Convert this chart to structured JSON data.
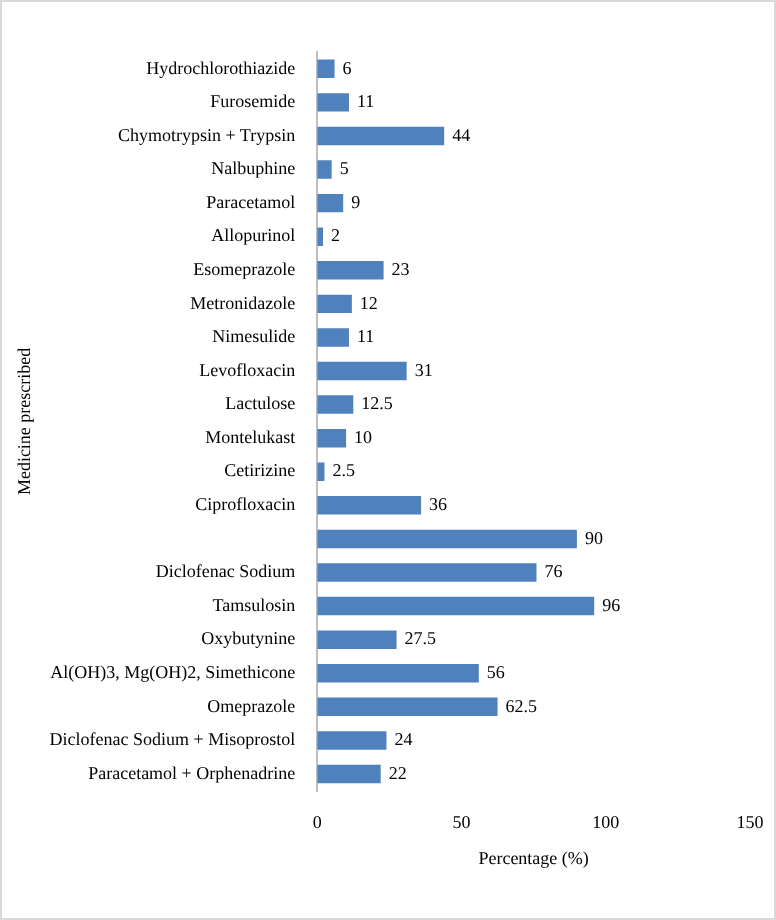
{
  "chart_data": {
    "type": "bar",
    "orientation": "horizontal",
    "xlabel": "Percentage (%)",
    "ylabel": "Medicine prescribed",
    "categories": [
      "Hydrochlorothiazide",
      "Furosemide",
      "Chymotrypsin + Trypsin",
      "Nalbuphine",
      "Paracetamol",
      "Allopurinol",
      "Esomeprazole",
      "Metronidazole",
      "Nimesulide",
      "Levofloxacin",
      "Lactulose",
      "Montelukast",
      "Cetirizine",
      "Ciprofloxacin",
      null,
      "Diclofenac Sodium",
      "Tamsulosin",
      "Oxybutynine",
      "Al(OH)3, Mg(OH)2, Simethicone",
      "Omeprazole",
      "Diclofenac Sodium + Misoprostol",
      "Paracetamol + Orphenadrine"
    ],
    "values": [
      6,
      11,
      44,
      5,
      9,
      2,
      23,
      12,
      11,
      31,
      12.5,
      10,
      2.5,
      36,
      90,
      76,
      96,
      27.5,
      56,
      62.5,
      24,
      22
    ],
    "color": "#4f81bd",
    "xlim": [
      0,
      150
    ],
    "xticks": [
      0,
      50,
      100,
      150
    ],
    "grid": false,
    "legend": false,
    "data_labels": true
  }
}
